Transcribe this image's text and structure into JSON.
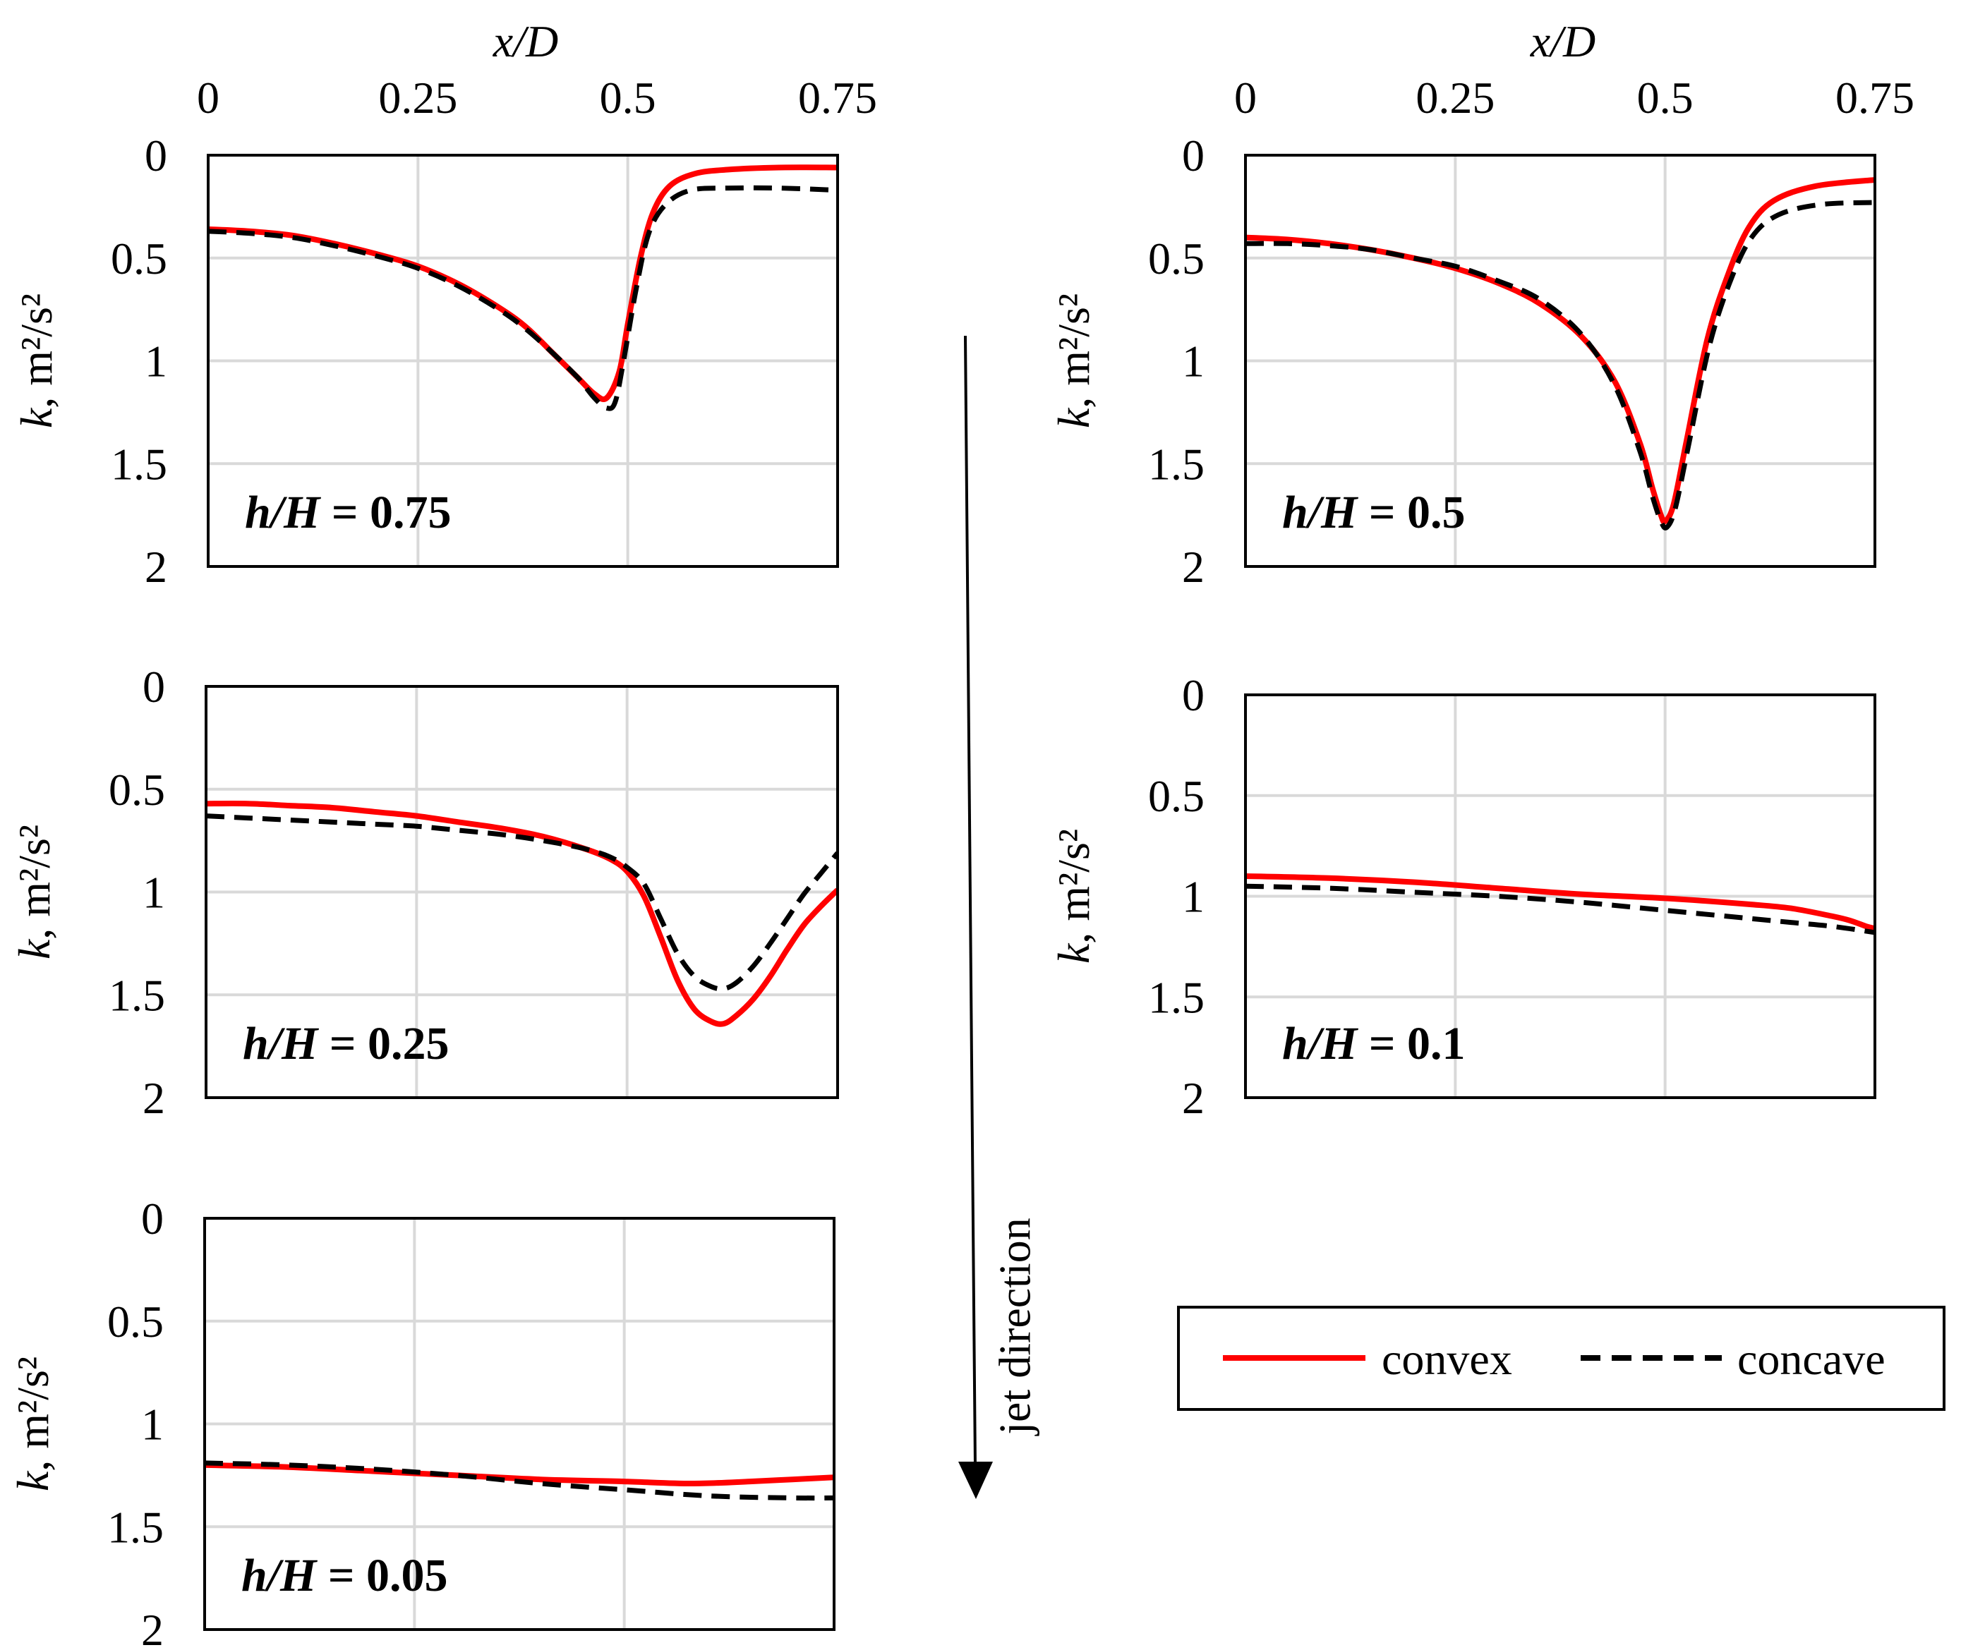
{
  "colors": {
    "convex": "#ff0000",
    "concave": "#000000",
    "grid": "#d9d9d9",
    "frame": "#000000"
  },
  "chart_data": [
    {
      "type": "line",
      "panel_label": "h/H = 0.75",
      "label_italic_part": "h/H",
      "label_value_part": " = 0.75",
      "xlabel": "x/D",
      "ylabel": "k, m²/s²",
      "xlim": [
        0,
        0.75
      ],
      "ylim": [
        0,
        2
      ],
      "y_inverted": true,
      "grid": true,
      "x_ticks": [
        "0",
        "0.25",
        "0.5",
        "0.75"
      ],
      "y_ticks": [
        "0",
        "0.5",
        "1",
        "1.5",
        "2"
      ],
      "show_x_ticks": true,
      "series": [
        {
          "name": "convex",
          "style": "solid",
          "x": [
            0,
            0.05,
            0.1,
            0.15,
            0.2,
            0.25,
            0.3,
            0.35,
            0.38,
            0.41,
            0.44,
            0.46,
            0.475,
            0.49,
            0.5,
            0.515,
            0.53,
            0.55,
            0.58,
            0.62,
            0.68,
            0.75
          ],
          "y": [
            0.36,
            0.37,
            0.39,
            0.43,
            0.48,
            0.54,
            0.63,
            0.75,
            0.84,
            0.96,
            1.08,
            1.16,
            1.18,
            1.05,
            0.82,
            0.5,
            0.28,
            0.15,
            0.09,
            0.07,
            0.06,
            0.06
          ]
        },
        {
          "name": "concave",
          "style": "dashed",
          "x": [
            0,
            0.05,
            0.1,
            0.15,
            0.2,
            0.25,
            0.3,
            0.35,
            0.38,
            0.41,
            0.44,
            0.46,
            0.475,
            0.485,
            0.495,
            0.51,
            0.525,
            0.545,
            0.575,
            0.62,
            0.68,
            0.75
          ],
          "y": [
            0.37,
            0.38,
            0.4,
            0.44,
            0.49,
            0.55,
            0.64,
            0.76,
            0.85,
            0.96,
            1.08,
            1.18,
            1.23,
            1.2,
            1.0,
            0.65,
            0.38,
            0.24,
            0.17,
            0.16,
            0.16,
            0.17
          ]
        }
      ]
    },
    {
      "type": "line",
      "panel_label": "h/H = 0.5",
      "label_italic_part": "h/H",
      "label_value_part": " = 0.5",
      "xlabel": "x/D",
      "ylabel": "k, m²/s²",
      "xlim": [
        0,
        0.75
      ],
      "ylim": [
        0,
        2
      ],
      "y_inverted": true,
      "grid": true,
      "x_ticks": [
        "0",
        "0.25",
        "0.5",
        "0.75"
      ],
      "y_ticks": [
        "0",
        "0.5",
        "1",
        "1.5",
        "2"
      ],
      "show_x_ticks": true,
      "series": [
        {
          "name": "convex",
          "style": "solid",
          "x": [
            0,
            0.05,
            0.1,
            0.15,
            0.2,
            0.25,
            0.3,
            0.35,
            0.4,
            0.44,
            0.47,
            0.485,
            0.495,
            0.5,
            0.51,
            0.525,
            0.55,
            0.575,
            0.6,
            0.63,
            0.68,
            0.75
          ],
          "y": [
            0.4,
            0.41,
            0.43,
            0.46,
            0.5,
            0.55,
            0.62,
            0.72,
            0.88,
            1.1,
            1.4,
            1.62,
            1.75,
            1.78,
            1.7,
            1.4,
            0.9,
            0.58,
            0.35,
            0.22,
            0.15,
            0.12
          ]
        },
        {
          "name": "concave",
          "style": "dashed",
          "x": [
            0,
            0.05,
            0.1,
            0.15,
            0.2,
            0.25,
            0.3,
            0.35,
            0.4,
            0.44,
            0.47,
            0.485,
            0.495,
            0.502,
            0.512,
            0.527,
            0.552,
            0.577,
            0.603,
            0.635,
            0.685,
            0.75
          ],
          "y": [
            0.43,
            0.43,
            0.44,
            0.46,
            0.5,
            0.54,
            0.61,
            0.7,
            0.87,
            1.12,
            1.44,
            1.66,
            1.78,
            1.81,
            1.72,
            1.43,
            0.94,
            0.62,
            0.4,
            0.29,
            0.24,
            0.23
          ]
        }
      ]
    },
    {
      "type": "line",
      "panel_label": "h/H = 0.25",
      "label_italic_part": "h/H",
      "label_value_part": " = 0.25",
      "xlabel": "",
      "ylabel": "k, m²/s²",
      "xlim": [
        0,
        0.75
      ],
      "ylim": [
        0,
        2
      ],
      "y_inverted": true,
      "grid": true,
      "x_ticks": [],
      "y_ticks": [
        "0",
        "0.5",
        "1",
        "1.5",
        "2"
      ],
      "show_x_ticks": false,
      "series": [
        {
          "name": "convex",
          "style": "solid",
          "x": [
            0,
            0.05,
            0.1,
            0.15,
            0.2,
            0.25,
            0.3,
            0.35,
            0.4,
            0.45,
            0.48,
            0.5,
            0.52,
            0.54,
            0.56,
            0.58,
            0.6,
            0.615,
            0.63,
            0.65,
            0.67,
            0.69,
            0.71,
            0.73,
            0.75
          ],
          "y": [
            0.57,
            0.57,
            0.58,
            0.59,
            0.61,
            0.63,
            0.66,
            0.69,
            0.73,
            0.79,
            0.84,
            0.9,
            1.02,
            1.22,
            1.43,
            1.57,
            1.63,
            1.64,
            1.6,
            1.52,
            1.41,
            1.28,
            1.16,
            1.07,
            0.99
          ]
        },
        {
          "name": "concave",
          "style": "dashed",
          "x": [
            0,
            0.05,
            0.1,
            0.15,
            0.2,
            0.25,
            0.3,
            0.35,
            0.4,
            0.45,
            0.48,
            0.5,
            0.52,
            0.54,
            0.56,
            0.58,
            0.6,
            0.615,
            0.63,
            0.65,
            0.67,
            0.69,
            0.71,
            0.73,
            0.75
          ],
          "y": [
            0.63,
            0.64,
            0.65,
            0.66,
            0.67,
            0.68,
            0.7,
            0.72,
            0.75,
            0.79,
            0.83,
            0.88,
            0.96,
            1.13,
            1.3,
            1.41,
            1.46,
            1.47,
            1.44,
            1.36,
            1.25,
            1.13,
            1.01,
            0.91,
            0.81
          ]
        }
      ]
    },
    {
      "type": "line",
      "panel_label": "h/H = 0.1",
      "label_italic_part": "h/H",
      "label_value_part": " = 0.1",
      "xlabel": "",
      "ylabel": "k, m²/s²",
      "xlim": [
        0,
        0.75
      ],
      "ylim": [
        0,
        2
      ],
      "y_inverted": true,
      "grid": true,
      "x_ticks": [],
      "y_ticks": [
        "0",
        "0.5",
        "1",
        "1.5",
        "2"
      ],
      "show_x_ticks": false,
      "series": [
        {
          "name": "convex",
          "style": "solid",
          "x": [
            0,
            0.1,
            0.2,
            0.3,
            0.4,
            0.5,
            0.6,
            0.65,
            0.7,
            0.72,
            0.74,
            0.75
          ],
          "y": [
            0.9,
            0.91,
            0.93,
            0.96,
            0.99,
            1.01,
            1.04,
            1.06,
            1.1,
            1.12,
            1.15,
            1.16
          ]
        },
        {
          "name": "concave",
          "style": "dashed",
          "x": [
            0,
            0.1,
            0.2,
            0.3,
            0.4,
            0.5,
            0.6,
            0.65,
            0.7,
            0.75
          ],
          "y": [
            0.95,
            0.96,
            0.98,
            1.0,
            1.03,
            1.07,
            1.11,
            1.13,
            1.15,
            1.18
          ]
        }
      ]
    },
    {
      "type": "line",
      "panel_label": "h/H = 0.05",
      "label_italic_part": "h/H",
      "label_value_part": " = 0.05",
      "xlabel": "",
      "ylabel": "k, m²/s²",
      "xlim": [
        0,
        0.75
      ],
      "ylim": [
        0,
        2
      ],
      "y_inverted": true,
      "grid": true,
      "x_ticks": [],
      "y_ticks": [
        "0",
        "0.5",
        "1",
        "1.5",
        "2"
      ],
      "show_x_ticks": false,
      "series": [
        {
          "name": "convex",
          "style": "solid",
          "x": [
            0,
            0.1,
            0.2,
            0.3,
            0.4,
            0.5,
            0.58,
            0.65,
            0.7,
            0.75
          ],
          "y": [
            1.2,
            1.21,
            1.23,
            1.25,
            1.27,
            1.28,
            1.29,
            1.28,
            1.27,
            1.26
          ]
        },
        {
          "name": "concave",
          "style": "dashed",
          "x": [
            0,
            0.1,
            0.2,
            0.3,
            0.4,
            0.5,
            0.6,
            0.7,
            0.75
          ],
          "y": [
            1.19,
            1.2,
            1.22,
            1.25,
            1.29,
            1.32,
            1.35,
            1.36,
            1.36
          ]
        }
      ]
    }
  ],
  "legend": {
    "entries": [
      {
        "name": "convex",
        "label": "convex"
      },
      {
        "name": "concave",
        "label": "concave"
      }
    ]
  },
  "arrow": {
    "label": "jet direction"
  }
}
